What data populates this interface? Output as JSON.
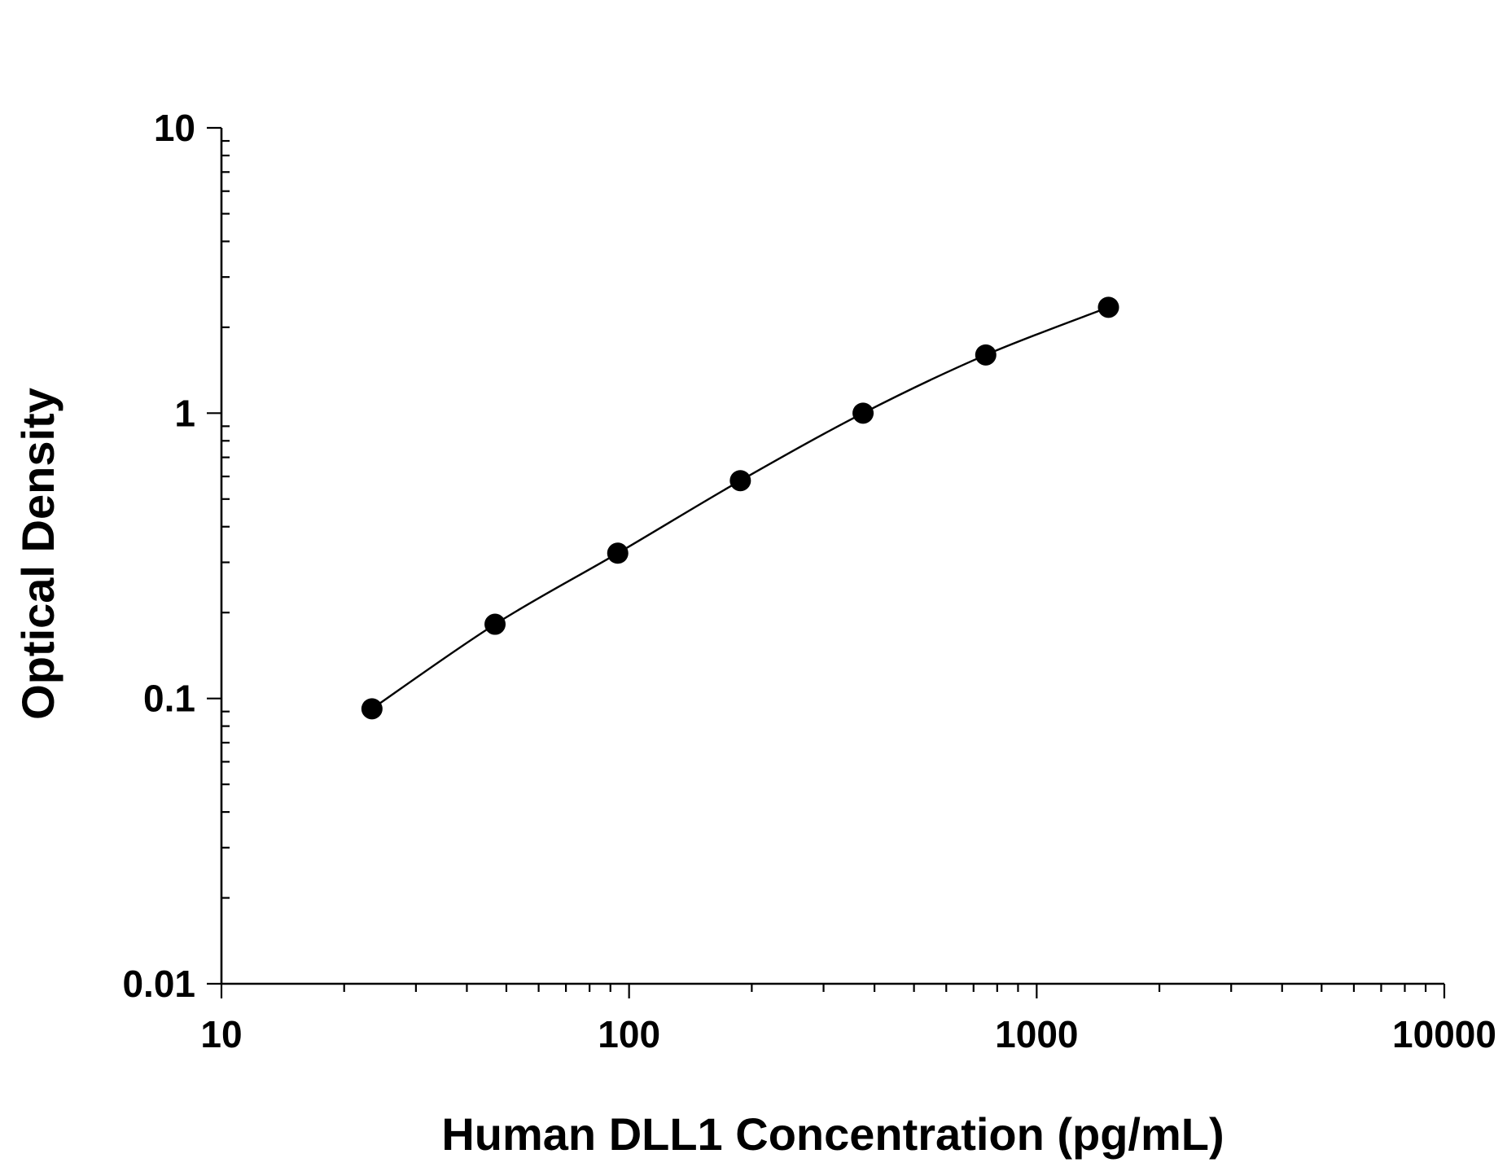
{
  "chart_data": {
    "type": "scatter",
    "title": "",
    "xlabel": "Human DLL1 Concentration (pg/mL)",
    "ylabel": "Optical Density",
    "x_scale": "log",
    "y_scale": "log",
    "xlim": [
      10,
      10000
    ],
    "ylim": [
      0.01,
      10
    ],
    "x_ticks": [
      10,
      100,
      1000,
      10000
    ],
    "x_tick_labels": [
      "10",
      "100",
      "1000",
      "10000"
    ],
    "y_ticks": [
      0.01,
      0.1,
      1,
      10
    ],
    "y_tick_labels": [
      "0.01",
      "0.1",
      "1",
      "10"
    ],
    "grid": false,
    "legend": "none",
    "series": [
      {
        "x": [
          23.4,
          46.9,
          93.8,
          187.5,
          375,
          750,
          1500
        ],
        "y": [
          0.092,
          0.182,
          0.323,
          0.58,
          1.0,
          1.6,
          2.35
        ]
      }
    ],
    "fit_curve": "smooth line through points",
    "colors": {
      "points": "#000000",
      "curve": "#000000",
      "axes": "#000000",
      "background": "#ffffff"
    }
  }
}
